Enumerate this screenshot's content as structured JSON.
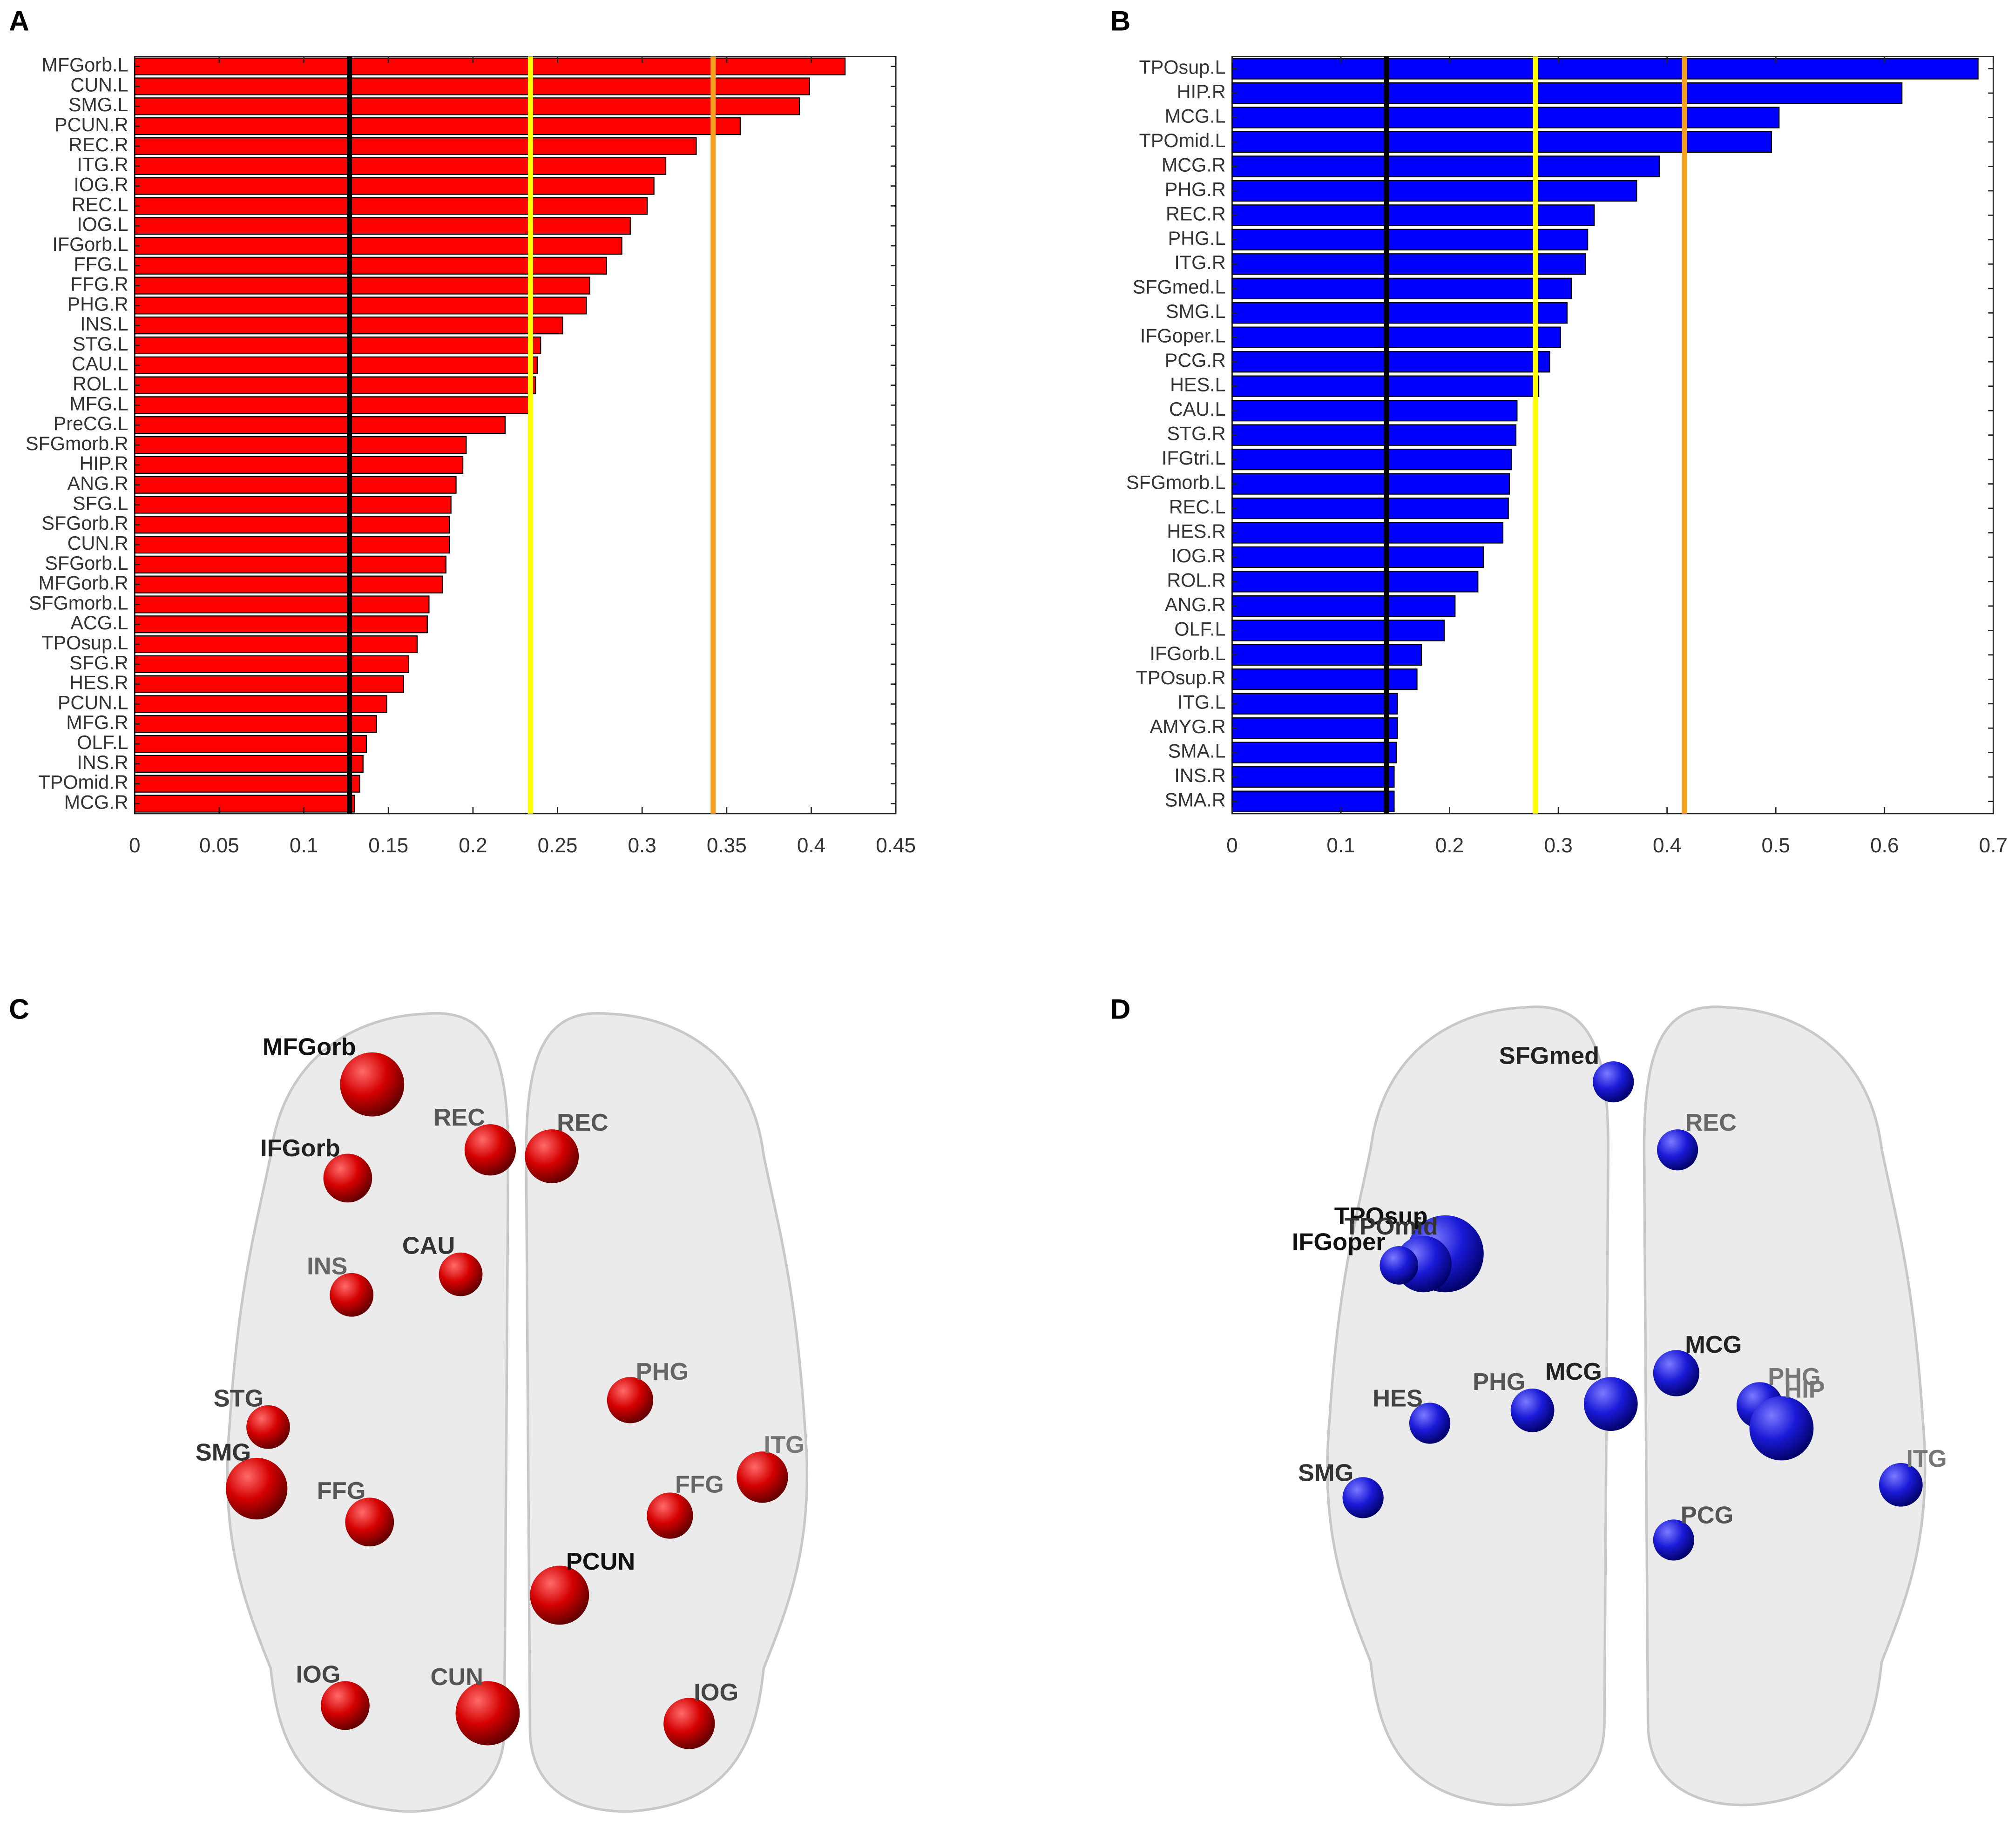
{
  "panel_labels": [
    "A",
    "B",
    "C",
    "D"
  ],
  "chart_data": [
    {
      "type": "bar",
      "orientation": "horizontal",
      "categories": [
        "MFGorb.L",
        "CUN.L",
        "SMG.L",
        "PCUN.R",
        "REC.R",
        "ITG.R",
        "IOG.R",
        "REC.L",
        "IOG.L",
        "IFGorb.L",
        "FFG.L",
        "FFG.R",
        "PHG.R",
        "INS.L",
        "STG.L",
        "CAU.L",
        "ROL.L",
        "MFG.L",
        "PreCG.L",
        "SFGmorb.R",
        "HIP.R",
        "ANG.R",
        "SFG.L",
        "SFGorb.R",
        "CUN.R",
        "SFGorb.L",
        "MFGorb.R",
        "SFGmorb.L",
        "ACG.L",
        "TPOsup.L",
        "SFG.R",
        "HES.R",
        "PCUN.L",
        "MFG.R",
        "OLF.L",
        "INS.R",
        "TPOmid.R",
        "MCG.R"
      ],
      "values": [
        0.42,
        0.399,
        0.393,
        0.358,
        0.332,
        0.314,
        0.307,
        0.303,
        0.293,
        0.288,
        0.279,
        0.269,
        0.267,
        0.253,
        0.24,
        0.238,
        0.237,
        0.234,
        0.219,
        0.196,
        0.194,
        0.19,
        0.187,
        0.186,
        0.186,
        0.184,
        0.182,
        0.174,
        0.173,
        0.167,
        0.162,
        0.159,
        0.149,
        0.143,
        0.137,
        0.135,
        0.133,
        0.13
      ],
      "color": "#ff0000",
      "xlim": [
        0,
        0.45
      ],
      "xticks": [
        0,
        0.05,
        0.1,
        0.15,
        0.2,
        0.25,
        0.3,
        0.35,
        0.4,
        0.45
      ],
      "reference_lines": [
        {
          "value": 0.127,
          "color": "#000000"
        },
        {
          "value": 0.234,
          "color": "#ffff00"
        },
        {
          "value": 0.342,
          "color": "#f5a020"
        }
      ]
    },
    {
      "type": "bar",
      "orientation": "horizontal",
      "categories": [
        "TPOsup.L",
        "HIP.R",
        "MCG.L",
        "TPOmid.L",
        "MCG.R",
        "PHG.R",
        "REC.R",
        "PHG.L",
        "ITG.R",
        "SFGmed.L",
        "SMG.L",
        "IFGoper.L",
        "PCG.R",
        "HES.L",
        "CAU.L",
        "STG.R",
        "IFGtri.L",
        "SFGmorb.L",
        "REC.L",
        "HES.R",
        "IOG.R",
        "ROL.R",
        "ANG.R",
        "OLF.L",
        "IFGorb.L",
        "TPOsup.R",
        "ITG.L",
        "AMYG.R",
        "SMA.L",
        "INS.R",
        "SMA.R"
      ],
      "values": [
        0.686,
        0.616,
        0.503,
        0.496,
        0.393,
        0.372,
        0.333,
        0.327,
        0.325,
        0.312,
        0.308,
        0.302,
        0.292,
        0.282,
        0.262,
        0.261,
        0.257,
        0.255,
        0.254,
        0.249,
        0.231,
        0.226,
        0.205,
        0.195,
        0.174,
        0.17,
        0.152,
        0.152,
        0.151,
        0.149,
        0.149
      ],
      "color": "#0000ff",
      "xlim": [
        0,
        0.7
      ],
      "xticks": [
        0,
        0.1,
        0.2,
        0.3,
        0.4,
        0.5,
        0.6,
        0.7
      ],
      "reference_lines": [
        {
          "value": 0.142,
          "color": "#000000"
        },
        {
          "value": 0.279,
          "color": "#ffff00"
        },
        {
          "value": 0.416,
          "color": "#f5a020"
        }
      ]
    }
  ],
  "brain_maps": [
    {
      "color": "red",
      "labels": [
        "MFGorb",
        "REC",
        "REC",
        "IFGorb",
        "CAU",
        "INS",
        "PHG",
        "STG",
        "ITG",
        "SMG",
        "FFG",
        "FFG",
        "PCUN",
        "IOG",
        "CUN",
        "IOG"
      ]
    },
    {
      "color": "blue",
      "labels": [
        "SFGmed",
        "REC",
        "TPOsup",
        "TPOmid",
        "IFGoper",
        "MCG",
        "PHG",
        "HIP",
        "MCG",
        "PHG",
        "HES",
        "SMG",
        "ITG",
        "PCG"
      ]
    }
  ]
}
